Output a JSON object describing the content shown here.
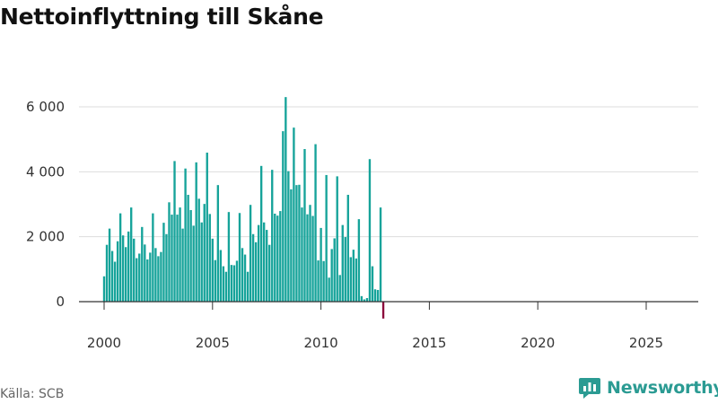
{
  "title": "Nettoinflyttning till Skåne",
  "source": "Källa: SCB",
  "brand": {
    "name": "Newsworthy",
    "icon": "bar-chart-speech-icon",
    "color": "#2b9b93"
  },
  "colors": {
    "bar": "#16a39a",
    "highlight": "#8c0a3c",
    "grid": "#dddddd",
    "axis": "#333333"
  },
  "chart_data": {
    "type": "bar",
    "title": "Nettoinflyttning till Skåne",
    "xlabel": "",
    "ylabel": "",
    "x_start": 2000,
    "periods_per_year": 8,
    "ylim": [
      -550,
      6400
    ],
    "yticks": [
      0,
      2000,
      4000,
      6000
    ],
    "ytick_labels": [
      "0",
      "2 000",
      "4 000",
      "6 000"
    ],
    "xticks": [
      2000,
      2005,
      2010,
      2015,
      2020,
      2025
    ],
    "xtick_labels": [
      "2000",
      "2005",
      "2010",
      "2015",
      "2020",
      "2025"
    ],
    "grid": true,
    "highlight_last": true,
    "values": [
      780,
      1750,
      2250,
      1560,
      1230,
      1860,
      2720,
      2040,
      1680,
      2160,
      2900,
      1940,
      1340,
      1480,
      2300,
      1760,
      1300,
      1510,
      2720,
      1650,
      1400,
      1530,
      2430,
      2080,
      3060,
      2680,
      4330,
      2680,
      2900,
      2250,
      4100,
      3290,
      2820,
      2340,
      4290,
      3170,
      2440,
      3010,
      4590,
      2700,
      1940,
      1280,
      3590,
      1590,
      1090,
      920,
      2760,
      1130,
      1120,
      1260,
      2730,
      1650,
      1450,
      920,
      2980,
      2080,
      1830,
      2360,
      4180,
      2440,
      2210,
      1750,
      4060,
      2710,
      2650,
      2790,
      5250,
      6300,
      4020,
      3460,
      5360,
      3590,
      3600,
      2900,
      4700,
      2690,
      2980,
      2640,
      4850,
      1270,
      2270,
      1250,
      3900,
      740,
      1620,
      1950,
      3860,
      820,
      2360,
      1990,
      3290,
      1370,
      1600,
      1330,
      2540,
      170,
      70,
      110,
      4390,
      1090,
      380,
      360,
      2900,
      -520
    ]
  }
}
